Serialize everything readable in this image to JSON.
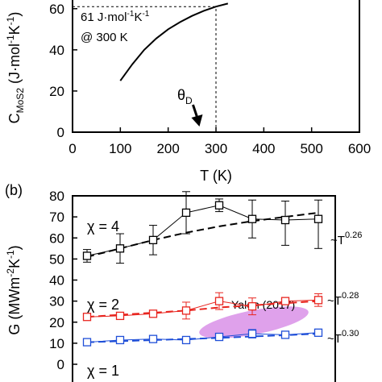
{
  "chart_data": [
    {
      "type": "line",
      "title": "",
      "xlabel": "T (K)",
      "ylabel_main": "C",
      "ylabel_sub": "MoS2",
      "ylabel_unit": " (J·mol",
      "ylabel_exp1": "-1",
      "ylabel_mid": "K",
      "ylabel_exp2": "-1",
      "ylabel_close": ")",
      "xlim": [
        0,
        600
      ],
      "ylim": [
        0,
        65
      ],
      "xticks": [
        "0",
        "100",
        "200",
        "300",
        "400",
        "500",
        "600"
      ],
      "yticks": [
        "0",
        "20",
        "40",
        "60"
      ],
      "grid": false,
      "series": [
        {
          "x": [
            100,
            125,
            150,
            175,
            200,
            225,
            250,
            275,
            300,
            325
          ],
          "y": [
            25,
            33,
            40,
            45.5,
            50,
            53.5,
            56.5,
            59,
            61,
            62.5
          ]
        }
      ],
      "reference": {
        "x": 300,
        "y": 61
      },
      "annotation_line1": "61 J·mol",
      "annotation_exp1": "-1",
      "annotation_mid": "K",
      "annotation_exp2": "-1",
      "annotation_line2": "@ 300 K",
      "theta_main": "θ",
      "theta_sub": "D",
      "theta_x": 262
    },
    {
      "type": "line",
      "panel_label": "(b)",
      "title": "",
      "ylabel_main": "G (MWm",
      "ylabel_exp1": "-2",
      "ylabel_mid": "K",
      "ylabel_exp2": "-1",
      "ylabel_close": ")",
      "ylim": [
        0,
        80
      ],
      "yticks": [
        "0",
        "10",
        "20",
        "30",
        "40",
        "50",
        "60",
        "70",
        "80"
      ],
      "grid": false,
      "x": [
        100,
        125,
        150,
        175,
        200,
        225,
        250,
        275,
        300
      ],
      "series": [
        {
          "name": "χ = 4",
          "color": "#000000",
          "values": [
            51.5,
            55,
            59,
            72,
            75.5,
            69,
            68.5,
            69
          ],
          "x": [
            100,
            125,
            150,
            175,
            200,
            225,
            250,
            275
          ],
          "err_low": [
            3,
            7,
            7,
            10,
            3,
            9,
            12,
            14
          ],
          "err_high": [
            3,
            7,
            7,
            10,
            3,
            9,
            9,
            9
          ],
          "fit": [
            51,
            55,
            59,
            62.5,
            65.5,
            68,
            70,
            72
          ],
          "fit_label": "~T",
          "fit_exp": "0.26"
        },
        {
          "name": "χ = 2",
          "color": "#e8251f",
          "values": [
            22.5,
            23,
            24,
            25.5,
            30,
            27.5,
            30,
            30.5
          ],
          "x": [
            100,
            125,
            150,
            175,
            200,
            225,
            250,
            275
          ],
          "err_low": [
            1,
            1,
            1,
            4,
            4,
            4,
            1,
            3
          ],
          "err_high": [
            1,
            1,
            1,
            4,
            4,
            4,
            1,
            3
          ],
          "fit": [
            22.5,
            23.5,
            24.5,
            25.5,
            27,
            28,
            29,
            30
          ],
          "fit_label": "~T",
          "fit_exp": "0.28"
        },
        {
          "name": "χ = 1",
          "color": "#1f4fd8",
          "values": [
            10.5,
            11.5,
            12,
            11.5,
            13,
            14.5,
            14,
            15
          ],
          "x": [
            100,
            125,
            150,
            175,
            200,
            225,
            250,
            275
          ],
          "err_low": [
            1,
            1,
            1,
            1,
            1,
            2,
            1.5,
            1.5
          ],
          "err_high": [
            1,
            1,
            1,
            1,
            1,
            2,
            1.5,
            1.5
          ],
          "fit": [
            10.5,
            11,
            11.5,
            12,
            12.5,
            13.2,
            13.8,
            14.5
          ],
          "fit_label": "~T",
          "fit_exp": "0.30"
        }
      ],
      "highlight": {
        "label": "Yalon (2017)",
        "color": "#cc44dd"
      }
    }
  ]
}
